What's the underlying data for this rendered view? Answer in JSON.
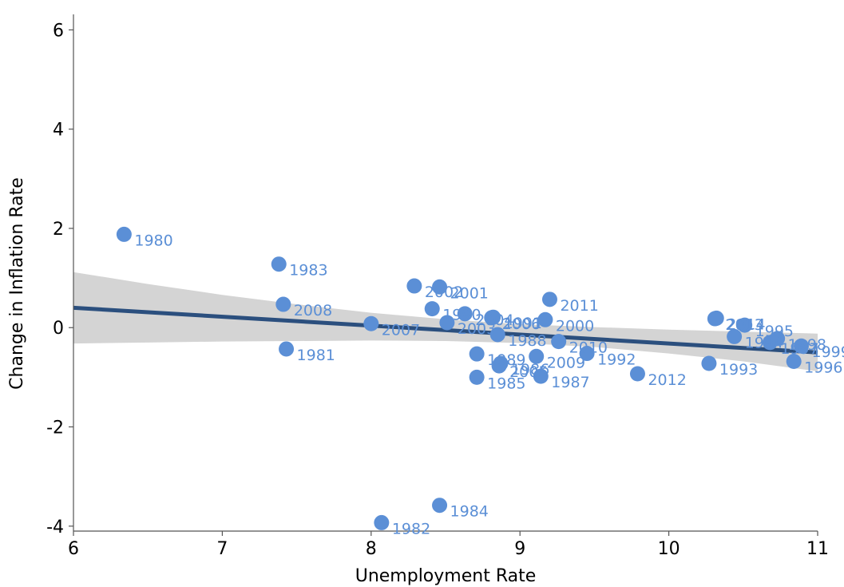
{
  "chart_data": {
    "type": "scatter",
    "title": "",
    "xlabel": "Unemployment Rate",
    "ylabel": "Change in Inflation Rate",
    "xlim": [
      6,
      11
    ],
    "ylim": [
      -4.1,
      6.2
    ],
    "x_ticks": [
      "6",
      "7",
      "8",
      "9",
      "10",
      "11"
    ],
    "y_ticks": [
      "-4",
      "-2",
      "0",
      "2",
      "4",
      "6"
    ],
    "grid": false,
    "legend": "none",
    "colors": {
      "point": "#5b8fd6",
      "label": "#5b8fd6",
      "fit_line": "#2b4f7e",
      "band": "#d4d4d4",
      "axis": "#555555"
    },
    "points": [
      {
        "label": "1980",
        "x": 6.34,
        "y": 1.88
      },
      {
        "label": "1981",
        "x": 7.43,
        "y": -0.43
      },
      {
        "label": "1982",
        "x": 8.07,
        "y": -3.93
      },
      {
        "label": "1983",
        "x": 7.38,
        "y": 1.28
      },
      {
        "label": "1984",
        "x": 8.46,
        "y": -3.58
      },
      {
        "label": "1985",
        "x": 8.71,
        "y": -1.0
      },
      {
        "label": "1986",
        "x": 8.87,
        "y": -0.72
      },
      {
        "label": "1987",
        "x": 9.14,
        "y": -0.98
      },
      {
        "label": "1988",
        "x": 8.85,
        "y": -0.14
      },
      {
        "label": "1989",
        "x": 8.71,
        "y": -0.53
      },
      {
        "label": "1990",
        "x": 8.41,
        "y": 0.38
      },
      {
        "label": "1991",
        "x": 8.82,
        "y": 0.21
      },
      {
        "label": "1992",
        "x": 9.45,
        "y": -0.52
      },
      {
        "label": "1993",
        "x": 10.27,
        "y": -0.72
      },
      {
        "label": "1994",
        "x": 10.44,
        "y": -0.18
      },
      {
        "label": "1995",
        "x": 10.51,
        "y": 0.05
      },
      {
        "label": "1996",
        "x": 10.84,
        "y": -0.68
      },
      {
        "label": "1997",
        "x": 10.68,
        "y": -0.3
      },
      {
        "label": "1998",
        "x": 10.73,
        "y": -0.22
      },
      {
        "label": "1999",
        "x": 10.89,
        "y": -0.37
      },
      {
        "label": "2000",
        "x": 9.17,
        "y": 0.16
      },
      {
        "label": "2001",
        "x": 8.46,
        "y": 0.82
      },
      {
        "label": "2002",
        "x": 8.29,
        "y": 0.84
      },
      {
        "label": "2003",
        "x": 8.51,
        "y": 0.1
      },
      {
        "label": "2004",
        "x": 8.63,
        "y": 0.28
      },
      {
        "label": "2005",
        "x": 8.86,
        "y": -0.77
      },
      {
        "label": "2006",
        "x": 8.81,
        "y": 0.2
      },
      {
        "label": "2007",
        "x": 8.0,
        "y": 0.08
      },
      {
        "label": "2008",
        "x": 7.41,
        "y": 0.47
      },
      {
        "label": "2009",
        "x": 9.11,
        "y": -0.58
      },
      {
        "label": "2010",
        "x": 9.26,
        "y": -0.28
      },
      {
        "label": "2011",
        "x": 9.2,
        "y": 0.57
      },
      {
        "label": "2012",
        "x": 9.79,
        "y": -0.93
      },
      {
        "label": "2013",
        "x": 10.31,
        "y": 0.18
      },
      {
        "label": "2014",
        "x": 10.32,
        "y": 0.19
      }
    ],
    "fit_line": {
      "x": [
        6,
        11
      ],
      "y": [
        0.4,
        -0.5
      ]
    },
    "confidence_band": {
      "x": [
        6,
        6.5,
        7,
        7.5,
        8,
        8.5,
        9,
        9.5,
        10,
        10.5,
        11
      ],
      "upper": [
        1.12,
        0.88,
        0.66,
        0.47,
        0.3,
        0.17,
        0.07,
        0.01,
        -0.04,
        -0.08,
        -0.12
      ],
      "lower": [
        -0.32,
        -0.3,
        -0.28,
        -0.27,
        -0.26,
        -0.27,
        -0.31,
        -0.39,
        -0.52,
        -0.68,
        -0.88
      ]
    }
  }
}
